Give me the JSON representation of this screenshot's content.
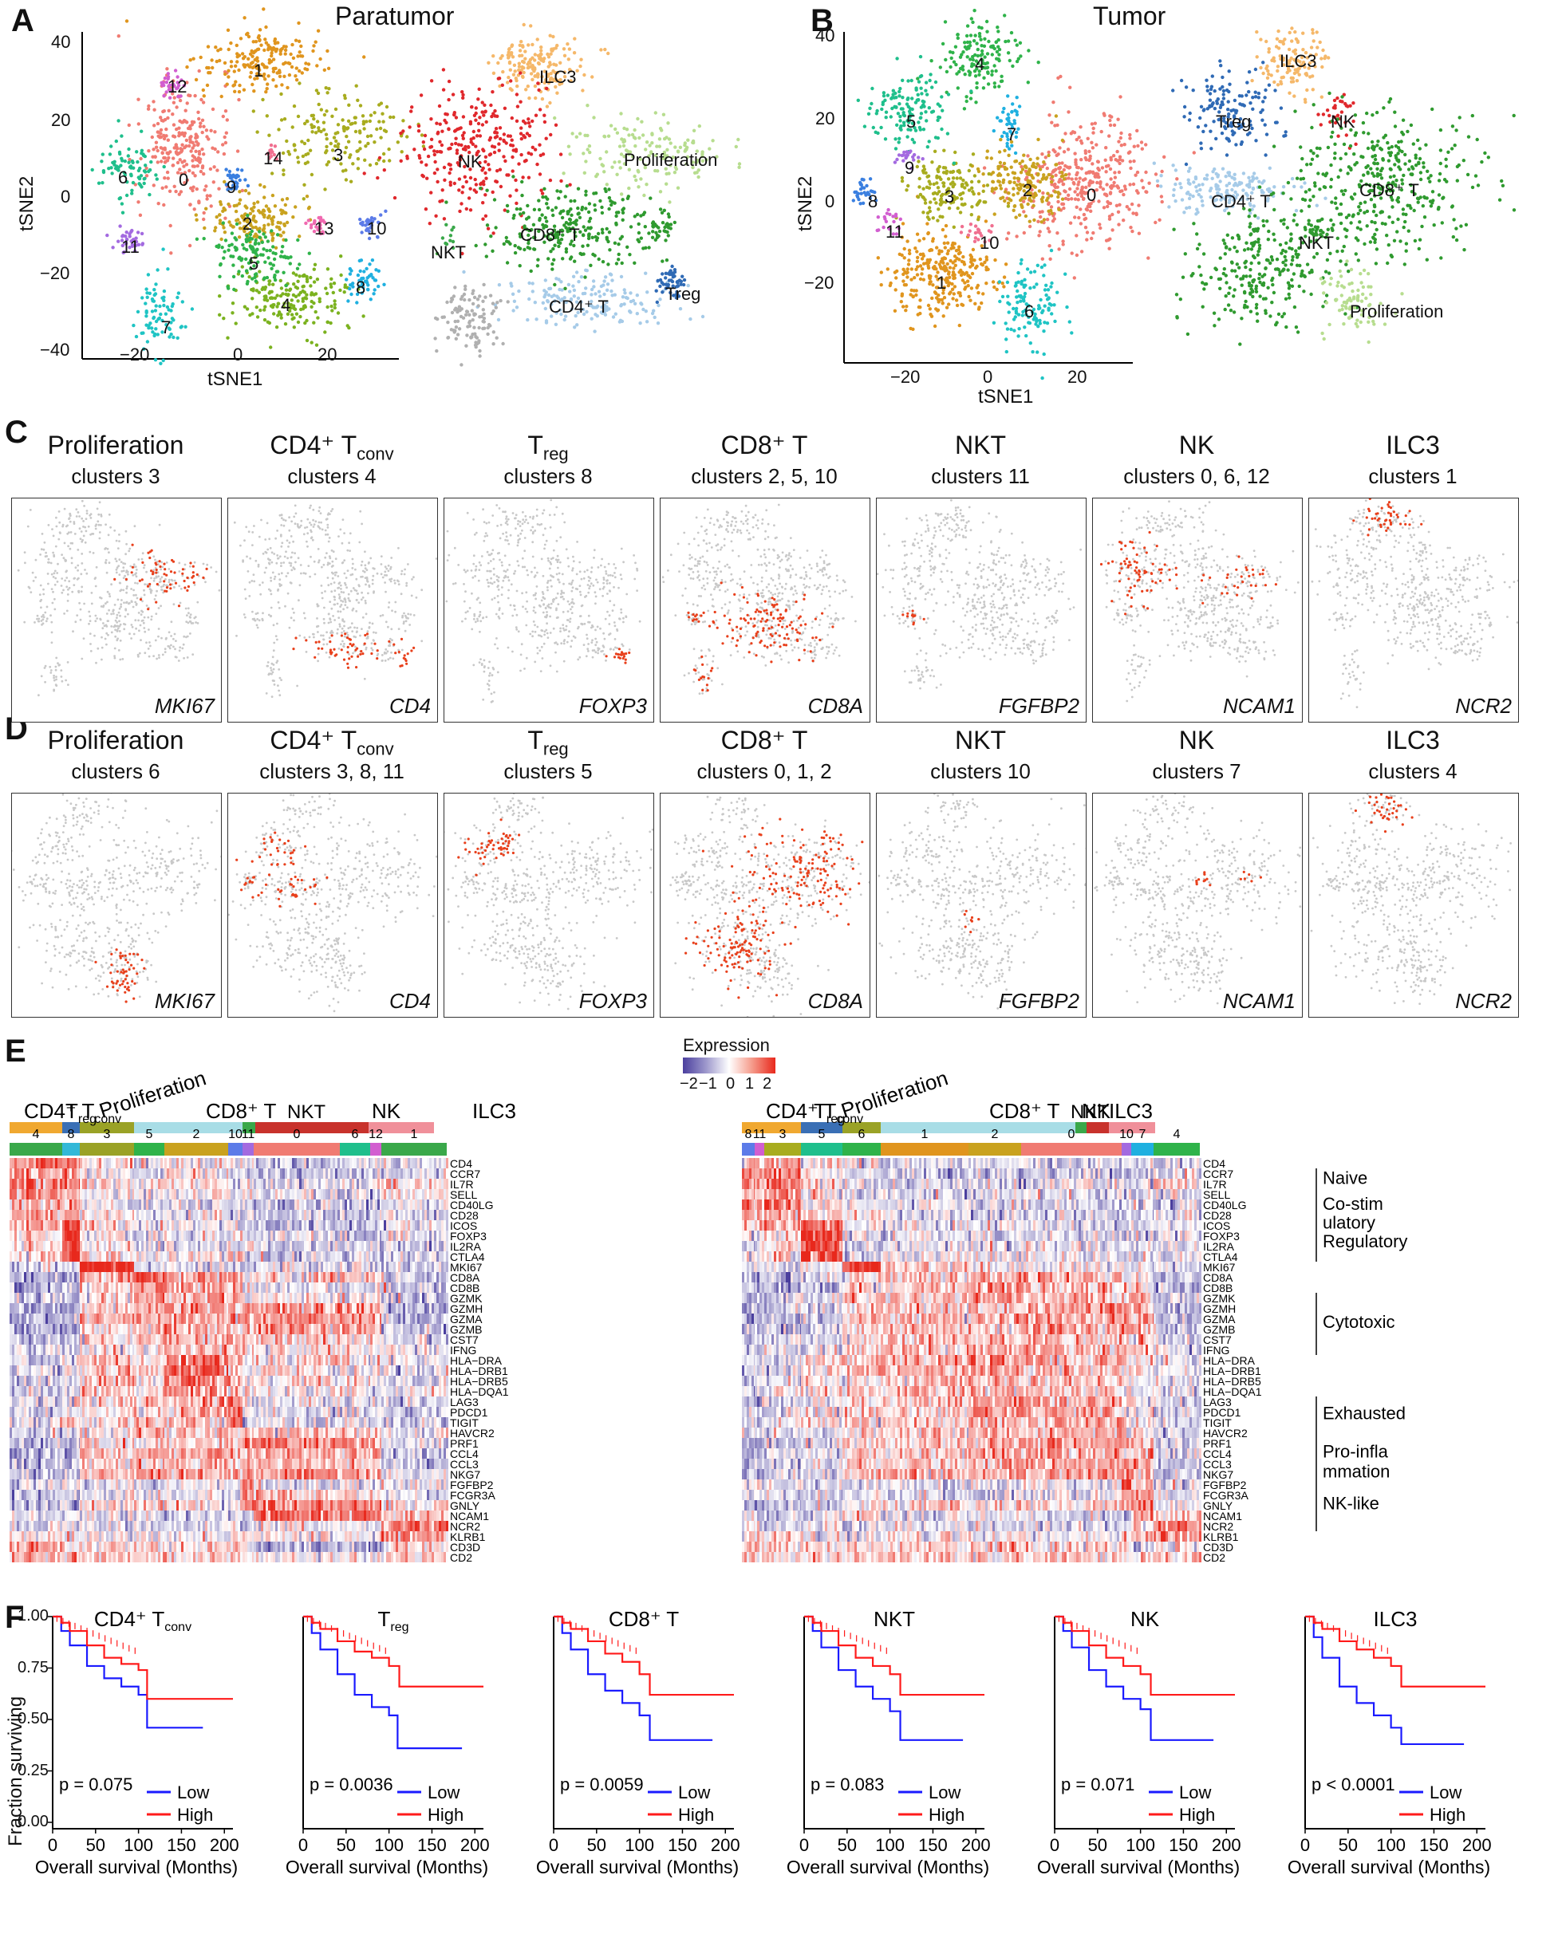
{
  "panel_letters": [
    "A",
    "B",
    "C",
    "D",
    "E",
    "F"
  ],
  "panelA": {
    "title": "Paratumor",
    "xlabel": "tSNE1",
    "ylabel": "tSNE2",
    "xticks": [
      "−20",
      "0",
      "20"
    ],
    "yticks": [
      "40",
      "20",
      "0",
      "−20",
      "−40"
    ],
    "cluster_labels": [
      "0",
      "1",
      "2",
      "3",
      "4",
      "5",
      "6",
      "7",
      "8",
      "9",
      "10",
      "11",
      "12",
      "13",
      "14"
    ],
    "celltype_labels": [
      "ILC3",
      "NK",
      "Proliferation",
      "NKT",
      "CD8⁺ T",
      "CD4⁺ T",
      "Treg"
    ]
  },
  "panelB": {
    "title": "Tumor",
    "xlabel": "tSNE1",
    "ylabel": "tSNE2",
    "xticks": [
      "−20",
      "0",
      "20"
    ],
    "yticks": [
      "40",
      "20",
      "0",
      "−20"
    ],
    "cluster_labels": [
      "0",
      "1",
      "2",
      "3",
      "4",
      "5",
      "6",
      "7",
      "8",
      "9",
      "10",
      "11"
    ],
    "celltype_labels": [
      "ILC3",
      "Treg",
      "NK",
      "CD4⁺ T",
      "CD8⁺ T",
      "NKT",
      "Proliferation"
    ]
  },
  "panelC": {
    "items": [
      {
        "title": "Proliferation",
        "title_sub": "",
        "subtitle": "clusters 3",
        "gene": "MKI67"
      },
      {
        "title": "CD4⁺ T",
        "title_sub": "conv",
        "subtitle": "clusters 4",
        "gene": "CD4"
      },
      {
        "title": "T",
        "title_sub": "reg",
        "subtitle": "clusters 8",
        "gene": "FOXP3"
      },
      {
        "title": "CD8⁺ T",
        "title_sub": "",
        "subtitle": "clusters 2, 5, 10",
        "gene": "CD8A"
      },
      {
        "title": "NKT",
        "title_sub": "",
        "subtitle": "clusters 11",
        "gene": "FGFBP2"
      },
      {
        "title": "NK",
        "title_sub": "",
        "subtitle": "clusters 0, 6, 12",
        "gene": "NCAM1"
      },
      {
        "title": "ILC3",
        "title_sub": "",
        "subtitle": "clusters 1",
        "gene": "NCR2"
      }
    ]
  },
  "panelD": {
    "items": [
      {
        "title": "Proliferation",
        "title_sub": "",
        "subtitle": "clusters 6",
        "gene": "MKI67"
      },
      {
        "title": "CD4⁺ T",
        "title_sub": "conv",
        "subtitle": "clusters 3, 8, 11",
        "gene": "CD4"
      },
      {
        "title": "T",
        "title_sub": "reg",
        "subtitle": "clusters 5",
        "gene": "FOXP3"
      },
      {
        "title": "CD8⁺ T",
        "title_sub": "",
        "subtitle": "clusters 0, 1, 2",
        "gene": "CD8A"
      },
      {
        "title": "NKT",
        "title_sub": "",
        "subtitle": "clusters 10",
        "gene": "FGFBP2"
      },
      {
        "title": "NK",
        "title_sub": "",
        "subtitle": "clusters 7",
        "gene": "NCAM1"
      },
      {
        "title": "ILC3",
        "title_sub": "",
        "subtitle": "clusters 4",
        "gene": "NCR2"
      }
    ]
  },
  "panelE": {
    "legend_title": "Expression",
    "legend_ticks": [
      "−2",
      "−1",
      "0",
      "1",
      "2"
    ],
    "left": {
      "groups": [
        {
          "name": "CD4⁺ T",
          "sub": "conv",
          "color": "#f0a830"
        },
        {
          "name": "T",
          "sub": "reg",
          "color": "#3a6fb5"
        },
        {
          "name": "Proliferation",
          "sub": "",
          "color": "#9aa226"
        },
        {
          "name": "CD8⁺ T",
          "sub": "",
          "color": "#a8dde6"
        },
        {
          "name": "NKT",
          "sub": "",
          "color": "#3aa84a"
        },
        {
          "name": "NK",
          "sub": "",
          "color": "#c8322c"
        },
        {
          "name": "ILC3",
          "sub": "",
          "color": "#f0909a"
        }
      ],
      "clusters": [
        "4",
        "8",
        "3",
        "5",
        "2",
        "10",
        "11",
        "0",
        "6",
        "12",
        "1"
      ]
    },
    "right": {
      "groups": [
        {
          "name": "CD4⁺ T",
          "sub": "conv",
          "color": "#f0a830"
        },
        {
          "name": "T",
          "sub": "reg",
          "color": "#3a6fb5"
        },
        {
          "name": "Proliferation",
          "sub": "",
          "color": "#9aa226"
        },
        {
          "name": "CD8⁺ T",
          "sub": "",
          "color": "#a8dde6"
        },
        {
          "name": "NKT",
          "sub": "",
          "color": "#3aa84a"
        },
        {
          "name": "NK",
          "sub": "",
          "color": "#c8322c"
        },
        {
          "name": "ILC3",
          "sub": "",
          "color": "#f0909a"
        }
      ],
      "clusters": [
        "8",
        "11",
        "3",
        "5",
        "6",
        "1",
        "2",
        "0",
        "10",
        "7",
        "4"
      ]
    },
    "genes": [
      "CD4",
      "CCR7",
      "IL7R",
      "SELL",
      "CD40LG",
      "CD28",
      "ICOS",
      "FOXP3",
      "IL2RA",
      "CTLA4",
      "MKI67",
      "CD8A",
      "CD8B",
      "GZMK",
      "GZMH",
      "GZMA",
      "GZMB",
      "CST7",
      "IFNG",
      "HLA−DRA",
      "HLA−DRB1",
      "HLA−DRB5",
      "HLA−DQA1",
      "LAG3",
      "PDCD1",
      "TIGIT",
      "HAVCR2",
      "PRF1",
      "CCL4",
      "CCL3",
      "NKG7",
      "FGFBP2",
      "FCGR3A",
      "GNLY",
      "NCAM1",
      "NCR2",
      "KLRB1",
      "CD3D",
      "CD2"
    ],
    "gene_groups": [
      "Naive",
      "Co-stim",
      "ulatory",
      "Regulatory",
      "Cytotoxic",
      "Exhausted",
      "Pro-infla",
      "mmation",
      "NK-like"
    ]
  },
  "panelF": {
    "ylabel": "Fraction surviving",
    "xlabel": "Overall survival (Months)",
    "yticks": [
      "1.00",
      "0.75",
      "0.50",
      "0.25",
      "0.00"
    ],
    "xticks": [
      "0",
      "50",
      "100",
      "150",
      "200"
    ],
    "legend": [
      "Low",
      "High"
    ],
    "colors": {
      "Low": "#1a1aff",
      "High": "#ff1a1a"
    },
    "plots": [
      {
        "title": "CD4⁺ T",
        "title_sub": "conv",
        "p": "p = 0.075"
      },
      {
        "title": "T",
        "title_sub": "reg",
        "p": "p = 0.0036"
      },
      {
        "title": "CD8⁺ T",
        "title_sub": "",
        "p": "p = 0.0059"
      },
      {
        "title": "NKT",
        "title_sub": "",
        "p": "p = 0.083"
      },
      {
        "title": "NK",
        "title_sub": "",
        "p": "p = 0.071"
      },
      {
        "title": "ILC3",
        "title_sub": "",
        "p": "p < 0.0001"
      }
    ]
  }
}
